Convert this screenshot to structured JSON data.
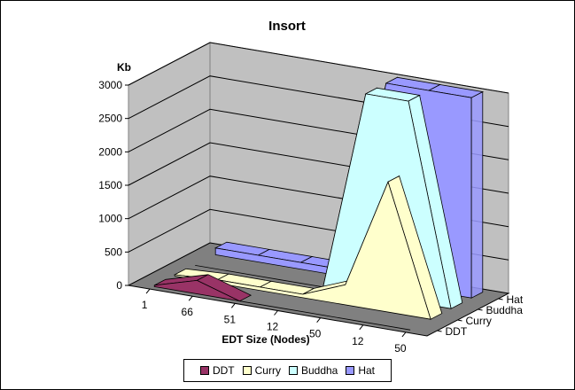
{
  "chart_data": {
    "type": "area",
    "title": "Insort",
    "xlabel": "EDT Size (Nodes)",
    "ylabel": "Kb",
    "categories": [
      "1",
      "66",
      "51",
      "12",
      "50",
      "12",
      "50"
    ],
    "yticks": [
      "0",
      "500",
      "1000",
      "1500",
      "2000",
      "2500",
      "3000"
    ],
    "ylim": [
      0,
      3000
    ],
    "depth_labels": [
      "DDT",
      "Curry",
      "Buddha",
      "Hat"
    ],
    "series": [
      {
        "name": "DDT",
        "color": "#993366",
        "values": [
          20,
          200,
          0,
          0,
          0,
          0,
          0
        ]
      },
      {
        "name": "Curry",
        "color": "#ffffcc",
        "values": [
          20,
          50,
          50,
          50,
          300,
          1950,
          0
        ]
      },
      {
        "name": "Buddha",
        "color": "#ccffff",
        "values": [
          0,
          0,
          0,
          0,
          3000,
          3000,
          0
        ]
      },
      {
        "name": "Hat",
        "color": "#9999ff",
        "values": [
          100,
          100,
          100,
          100,
          3000,
          3000,
          3000
        ]
      }
    ],
    "legend_position": "bottom",
    "grid": true
  }
}
